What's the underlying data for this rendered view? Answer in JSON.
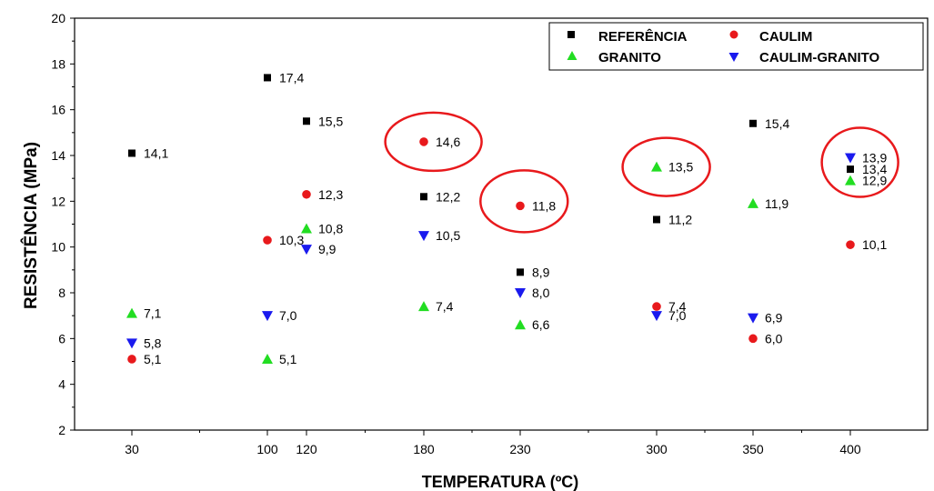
{
  "chart_data": {
    "type": "scatter",
    "title": "",
    "xlabel": "TEMPERATURA (ºC)",
    "ylabel": "RESISTÊNCIA (MPa)",
    "ylim": [
      2,
      20
    ],
    "yticks": [
      2,
      4,
      6,
      8,
      10,
      12,
      14,
      16,
      18,
      20
    ],
    "xticks": [
      30,
      100,
      120,
      180,
      230,
      300,
      350,
      400
    ],
    "x_tick_labels": [
      "30",
      "100",
      "120",
      "180",
      "230",
      "300",
      "350",
      "400"
    ],
    "xlim": [
      0,
      440
    ],
    "grid": false,
    "legend_position": "top-right",
    "series": [
      {
        "name": "REFERÊNCIA",
        "marker": "square",
        "color": "#000000",
        "x": [
          30,
          100,
          120,
          180,
          230,
          300,
          350,
          400
        ],
        "values": [
          14.1,
          17.4,
          15.5,
          12.2,
          8.9,
          11.2,
          15.4,
          13.4
        ],
        "labels": [
          "14,1",
          "17,4",
          "15,5",
          "12,2",
          "8,9",
          "11,2",
          "15,4",
          "13,4"
        ]
      },
      {
        "name": "CAULIM",
        "marker": "circle",
        "color": "#e8191c",
        "x": [
          30,
          100,
          120,
          180,
          230,
          300,
          350,
          400
        ],
        "values": [
          5.1,
          10.3,
          12.3,
          14.6,
          11.8,
          7.4,
          6.0,
          10.1
        ],
        "labels": [
          "5,1",
          "10,3",
          "12,3",
          "14,6",
          "11,8",
          "7,4",
          "6,0",
          "10,1"
        ]
      },
      {
        "name": "GRANITO",
        "marker": "triangle-up",
        "color": "#22dd22",
        "x": [
          30,
          100,
          120,
          180,
          230,
          300,
          350,
          400
        ],
        "values": [
          7.1,
          5.1,
          10.8,
          7.4,
          6.6,
          13.5,
          11.9,
          12.9
        ],
        "labels": [
          "7,1",
          "5,1",
          "10,8",
          "7,4",
          "6,6",
          "13,5",
          "11,9",
          "12,9"
        ]
      },
      {
        "name": "CAULIM-GRANITO",
        "marker": "triangle-down",
        "color": "#1a1aee",
        "x": [
          30,
          100,
          120,
          180,
          230,
          300,
          350,
          400
        ],
        "values": [
          5.8,
          7.0,
          9.9,
          10.5,
          8.0,
          7.0,
          6.9,
          13.9
        ],
        "labels": [
          "5,8",
          "7,0",
          "9,9",
          "10,5",
          "8,0",
          "7,0",
          "6,9",
          "13,9"
        ]
      }
    ],
    "annotations": [
      {
        "type": "ellipse",
        "color": "#e8191c",
        "center_x": 185,
        "center_y": 14.6
      },
      {
        "type": "ellipse",
        "color": "#e8191c",
        "center_x": 232,
        "center_y": 12.0
      },
      {
        "type": "ellipse",
        "color": "#e8191c",
        "center_x": 305,
        "center_y": 13.5
      },
      {
        "type": "ellipse",
        "color": "#e8191c",
        "center_x": 405,
        "center_y": 13.7
      }
    ]
  }
}
